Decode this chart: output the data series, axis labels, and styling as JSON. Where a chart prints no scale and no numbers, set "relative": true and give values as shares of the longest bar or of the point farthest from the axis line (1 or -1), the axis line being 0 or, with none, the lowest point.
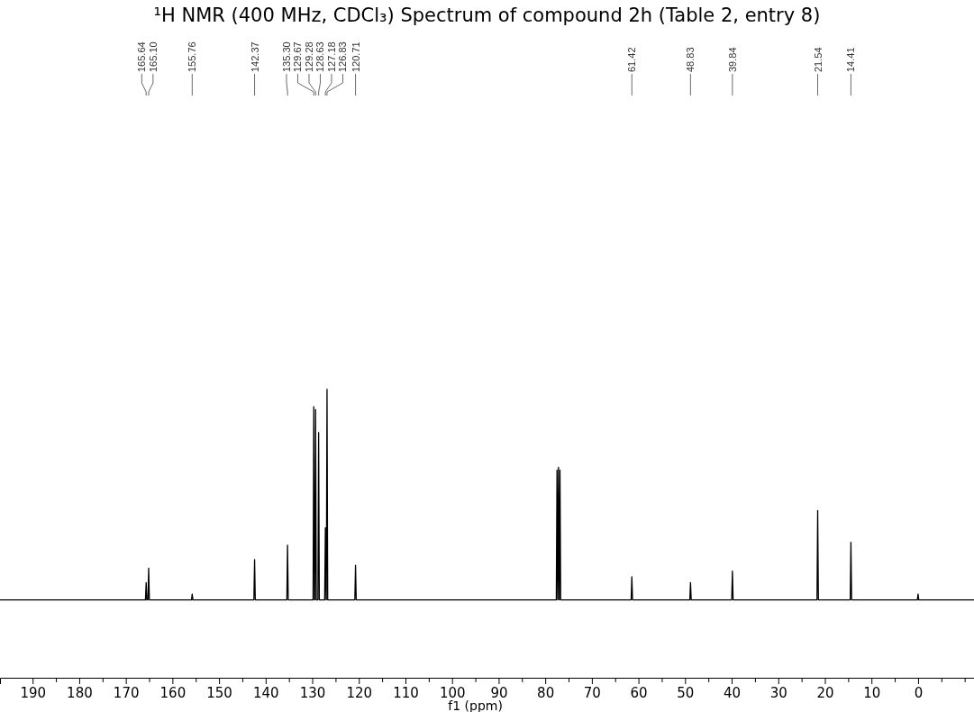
{
  "chart_data": {
    "type": "line",
    "title": "¹H NMR (400 MHz, CDCl₃) Spectrum of compound 2h (Table 2, entry 8)",
    "xlabel": "f1 (ppm)",
    "relative": true,
    "marker": "none",
    "line_style": "solid",
    "xlim": [
      197,
      -12
    ],
    "xticks": [
      190,
      {
        "value": 185,
        "label": null
      },
      180,
      {
        "value": 175,
        "label": null
      },
      170,
      {
        "value": 165,
        "label": null
      },
      160,
      {
        "value": 155,
        "label": null
      },
      150,
      {
        "value": 145,
        "label": null
      },
      140,
      {
        "value": 135,
        "label": null
      },
      130,
      {
        "value": 125,
        "label": null
      },
      120,
      {
        "value": 115,
        "label": null
      },
      110,
      {
        "value": 105,
        "label": null
      },
      100,
      {
        "value": 95,
        "label": null
      },
      90,
      {
        "value": 85,
        "label": null
      },
      80,
      {
        "value": 75,
        "label": null
      },
      70,
      {
        "value": 65,
        "label": null
      },
      60,
      {
        "value": 55,
        "label": null
      },
      50,
      {
        "value": 45,
        "label": null
      },
      40,
      {
        "value": 35,
        "label": null
      },
      30,
      {
        "value": 25,
        "label": null
      },
      20,
      {
        "value": 15,
        "label": null
      },
      10,
      {
        "value": 5,
        "label": null
      },
      0,
      {
        "value": -5,
        "label": null
      },
      {
        "value": -10,
        "label": null
      }
    ],
    "annotations": [
      {
        "text": "165.64",
        "x": 165.64
      },
      {
        "text": "165.10",
        "x": 165.1
      },
      {
        "text": "155.76",
        "x": 155.76
      },
      {
        "text": "142.37",
        "x": 142.37
      },
      {
        "text": "135.30",
        "x": 135.3
      },
      {
        "text": "129.67",
        "x": 129.67
      },
      {
        "text": "129.28",
        "x": 129.28
      },
      {
        "text": "128.63",
        "x": 128.63
      },
      {
        "text": "127.18",
        "x": 127.18
      },
      {
        "text": "126.83",
        "x": 126.83
      },
      {
        "text": "120.71",
        "x": 120.71
      },
      {
        "text": "61.42",
        "x": 61.42
      },
      {
        "text": "48.83",
        "x": 48.83
      },
      {
        "text": "39.84",
        "x": 39.84
      },
      {
        "text": "21.54",
        "x": 21.54
      },
      {
        "text": "14.41",
        "x": 14.41
      }
    ],
    "series": [
      {
        "color": "#000000",
        "x": [
          197,
          165.79,
          165.64,
          165.49,
          165.25,
          165.1,
          164.95,
          155.91,
          155.76,
          155.61,
          142.52,
          142.37,
          142.22,
          135.45,
          135.3,
          135.15,
          129.82,
          129.67,
          129.52,
          129.43,
          129.28,
          129.13,
          128.78,
          128.63,
          128.48,
          127.33,
          127.18,
          127.03,
          126.98,
          126.83,
          126.68,
          120.86,
          120.71,
          120.56,
          77.63,
          77.48,
          77.33,
          77.31,
          77.16,
          77.01,
          76.99,
          76.84,
          76.69,
          61.57,
          61.42,
          61.27,
          48.98,
          48.83,
          48.68,
          39.99,
          39.84,
          39.69,
          21.69,
          21.54,
          21.39,
          14.56,
          14.41,
          14.26,
          0.15,
          0,
          -0.15,
          -12
        ],
        "values": [
          0.27,
          0.27,
          0.33,
          0.27,
          0.27,
          0.38,
          0.27,
          0.27,
          0.29,
          0.27,
          0.27,
          0.41,
          0.27,
          0.27,
          0.46,
          0.27,
          0.27,
          0.94,
          0.27,
          0.27,
          0.93,
          0.27,
          0.27,
          0.85,
          0.27,
          0.27,
          0.52,
          0.27,
          0.27,
          1,
          0.27,
          0.27,
          0.39,
          0.27,
          0.27,
          0.72,
          0.27,
          0.27,
          0.73,
          0.27,
          0.27,
          0.72,
          0.27,
          0.27,
          0.35,
          0.27,
          0.27,
          0.33,
          0.27,
          0.27,
          0.37,
          0.27,
          0.27,
          0.58,
          0.27,
          0.27,
          0.47,
          0.27,
          0.27,
          0.29,
          0.27,
          0.27
        ]
      }
    ]
  }
}
